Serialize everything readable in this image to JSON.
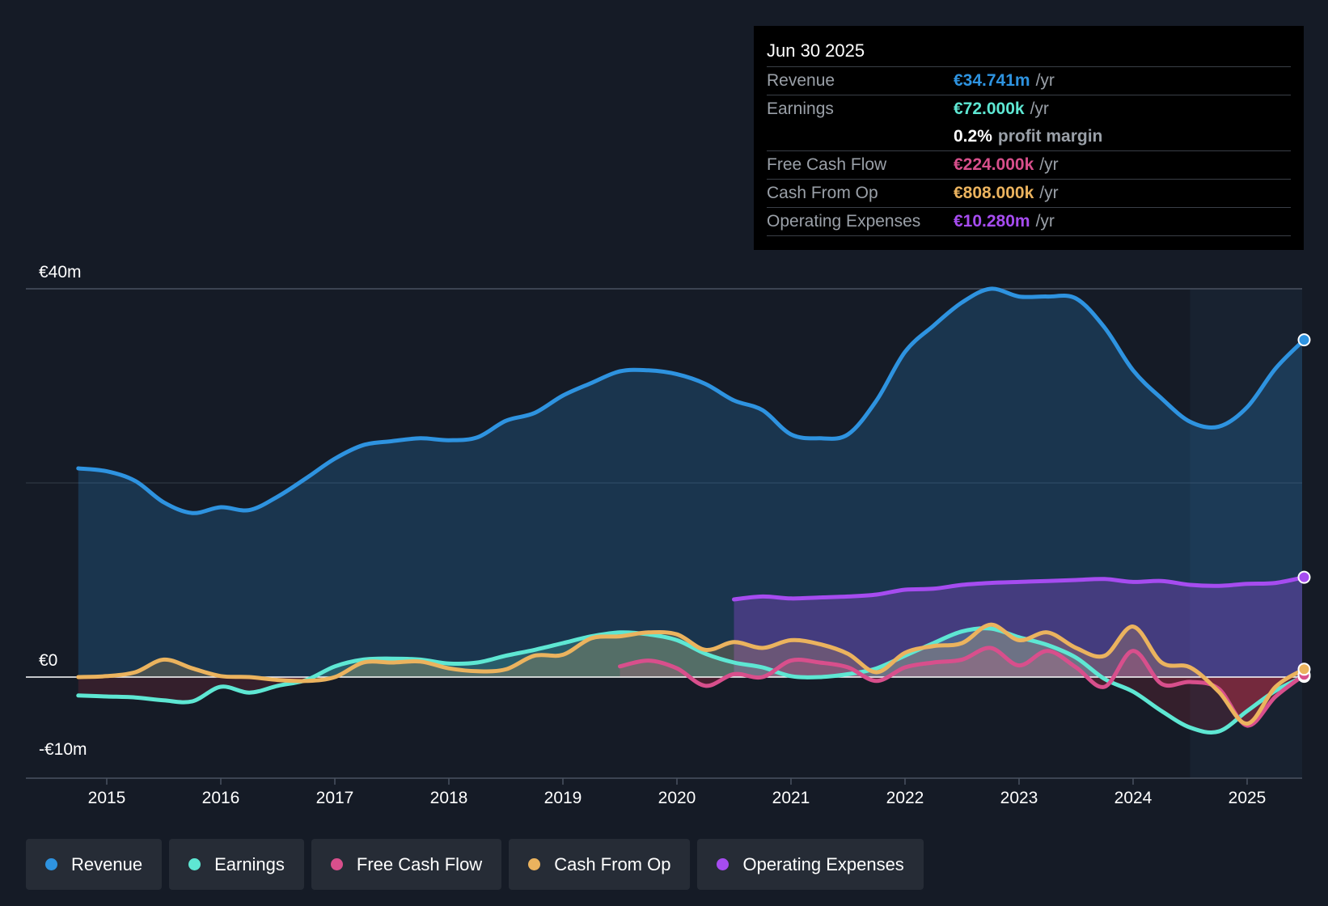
{
  "tooltip": {
    "date": "Jun 30 2025",
    "revenue": {
      "label": "Revenue",
      "value": "€34.741m",
      "unit": "/yr"
    },
    "earnings": {
      "label": "Earnings",
      "value": "€72.000k",
      "unit": "/yr"
    },
    "margin": {
      "value": "0.2%",
      "label": "profit margin"
    },
    "fcf": {
      "label": "Free Cash Flow",
      "value": "€224.000k",
      "unit": "/yr"
    },
    "cfo": {
      "label": "Cash From Op",
      "value": "€808.000k",
      "unit": "/yr"
    },
    "opex": {
      "label": "Operating Expenses",
      "value": "€10.280m",
      "unit": "/yr"
    }
  },
  "legend": {
    "revenue": "Revenue",
    "earnings": "Earnings",
    "fcf": "Free Cash Flow",
    "cfo": "Cash From Op",
    "opex": "Operating Expenses"
  },
  "colors": {
    "revenue": "#2e93e0",
    "earnings": "#5ee7d3",
    "fcf": "#d84f8c",
    "cfo": "#ebb35e",
    "opex": "#a64cf0",
    "background": "#151b26"
  },
  "chart_data": {
    "type": "line",
    "x_unit": "year",
    "ylim": [
      -10,
      40
    ],
    "y_ticks": [
      {
        "value": 40,
        "label": "€40m"
      },
      {
        "value": 0,
        "label": "€0"
      },
      {
        "value": -10,
        "label": "-€10m"
      }
    ],
    "x_ticks": [
      2015,
      2016,
      2017,
      2018,
      2019,
      2020,
      2021,
      2022,
      2023,
      2024,
      2025
    ],
    "forecast_start": 2024.5,
    "series": [
      {
        "key": "revenue",
        "name": "Revenue",
        "points": [
          [
            2014.75,
            21.5
          ],
          [
            2015.0,
            21.2
          ],
          [
            2015.25,
            20.2
          ],
          [
            2015.5,
            18.0
          ],
          [
            2015.75,
            16.9
          ],
          [
            2016.0,
            17.5
          ],
          [
            2016.25,
            17.2
          ],
          [
            2016.5,
            18.6
          ],
          [
            2016.75,
            20.5
          ],
          [
            2017.0,
            22.5
          ],
          [
            2017.25,
            23.9
          ],
          [
            2017.5,
            24.3
          ],
          [
            2017.75,
            24.6
          ],
          [
            2018.0,
            24.4
          ],
          [
            2018.25,
            24.7
          ],
          [
            2018.5,
            26.4
          ],
          [
            2018.75,
            27.2
          ],
          [
            2019.0,
            29.0
          ],
          [
            2019.25,
            30.3
          ],
          [
            2019.5,
            31.5
          ],
          [
            2019.75,
            31.6
          ],
          [
            2020.0,
            31.2
          ],
          [
            2020.25,
            30.2
          ],
          [
            2020.5,
            28.5
          ],
          [
            2020.75,
            27.5
          ],
          [
            2021.0,
            25.0
          ],
          [
            2021.25,
            24.6
          ],
          [
            2021.5,
            25.0
          ],
          [
            2021.75,
            28.5
          ],
          [
            2022.0,
            33.5
          ],
          [
            2022.25,
            36.2
          ],
          [
            2022.5,
            38.6
          ],
          [
            2022.75,
            40.0
          ],
          [
            2023.0,
            39.2
          ],
          [
            2023.25,
            39.2
          ],
          [
            2023.5,
            39.0
          ],
          [
            2023.75,
            36.0
          ],
          [
            2024.0,
            31.6
          ],
          [
            2024.25,
            28.7
          ],
          [
            2024.5,
            26.3
          ],
          [
            2024.75,
            25.8
          ],
          [
            2025.0,
            27.8
          ],
          [
            2025.25,
            31.8
          ],
          [
            2025.5,
            34.741
          ]
        ]
      },
      {
        "key": "opex",
        "name": "Operating Expenses",
        "points": [
          [
            2020.5,
            8.0
          ],
          [
            2020.75,
            8.3
          ],
          [
            2021.0,
            8.1
          ],
          [
            2021.25,
            8.2
          ],
          [
            2021.5,
            8.3
          ],
          [
            2021.75,
            8.5
          ],
          [
            2022.0,
            9.0
          ],
          [
            2022.25,
            9.1
          ],
          [
            2022.5,
            9.5
          ],
          [
            2022.75,
            9.7
          ],
          [
            2023.0,
            9.8
          ],
          [
            2023.25,
            9.9
          ],
          [
            2023.5,
            10.0
          ],
          [
            2023.75,
            10.1
          ],
          [
            2024.0,
            9.8
          ],
          [
            2024.25,
            9.9
          ],
          [
            2024.5,
            9.5
          ],
          [
            2024.75,
            9.4
          ],
          [
            2025.0,
            9.6
          ],
          [
            2025.25,
            9.7
          ],
          [
            2025.5,
            10.28
          ]
        ]
      },
      {
        "key": "earnings",
        "name": "Earnings",
        "points": [
          [
            2014.75,
            -1.9
          ],
          [
            2015.0,
            -2.0
          ],
          [
            2015.25,
            -2.1
          ],
          [
            2015.5,
            -2.4
          ],
          [
            2015.75,
            -2.5
          ],
          [
            2016.0,
            -1.0
          ],
          [
            2016.25,
            -1.6
          ],
          [
            2016.5,
            -0.9
          ],
          [
            2016.75,
            -0.3
          ],
          [
            2017.0,
            1.1
          ],
          [
            2017.25,
            1.8
          ],
          [
            2017.5,
            1.9
          ],
          [
            2017.75,
            1.8
          ],
          [
            2018.0,
            1.4
          ],
          [
            2018.25,
            1.5
          ],
          [
            2018.5,
            2.2
          ],
          [
            2018.75,
            2.8
          ],
          [
            2019.0,
            3.5
          ],
          [
            2019.25,
            4.2
          ],
          [
            2019.5,
            4.6
          ],
          [
            2019.75,
            4.4
          ],
          [
            2020.0,
            3.8
          ],
          [
            2020.25,
            2.4
          ],
          [
            2020.5,
            1.5
          ],
          [
            2020.75,
            1.0
          ],
          [
            2021.0,
            0.1
          ],
          [
            2021.25,
            0.0
          ],
          [
            2021.5,
            0.3
          ],
          [
            2021.75,
            0.9
          ],
          [
            2022.0,
            2.2
          ],
          [
            2022.25,
            3.5
          ],
          [
            2022.5,
            4.7
          ],
          [
            2022.75,
            5.0
          ],
          [
            2023.0,
            4.1
          ],
          [
            2023.25,
            3.3
          ],
          [
            2023.5,
            2.0
          ],
          [
            2023.75,
            -0.2
          ],
          [
            2024.0,
            -1.5
          ],
          [
            2024.25,
            -3.5
          ],
          [
            2024.5,
            -5.2
          ],
          [
            2024.75,
            -5.6
          ],
          [
            2025.0,
            -3.5
          ],
          [
            2025.25,
            -1.4
          ],
          [
            2025.5,
            0.072
          ]
        ]
      },
      {
        "key": "fcf",
        "name": "Free Cash Flow",
        "points": [
          [
            2019.5,
            1.1
          ],
          [
            2019.75,
            1.7
          ],
          [
            2020.0,
            0.9
          ],
          [
            2020.25,
            -0.9
          ],
          [
            2020.5,
            0.3
          ],
          [
            2020.75,
            0.0
          ],
          [
            2021.0,
            1.7
          ],
          [
            2021.25,
            1.5
          ],
          [
            2021.5,
            1.0
          ],
          [
            2021.75,
            -0.4
          ],
          [
            2022.0,
            1.0
          ],
          [
            2022.25,
            1.5
          ],
          [
            2022.5,
            1.8
          ],
          [
            2022.75,
            3.0
          ],
          [
            2023.0,
            1.2
          ],
          [
            2023.25,
            2.7
          ],
          [
            2023.5,
            1.0
          ],
          [
            2023.75,
            -1.0
          ],
          [
            2024.0,
            2.7
          ],
          [
            2024.25,
            -0.7
          ],
          [
            2024.5,
            -0.5
          ],
          [
            2024.75,
            -1.2
          ],
          [
            2025.0,
            -5.0
          ],
          [
            2025.25,
            -2.0
          ],
          [
            2025.5,
            0.224
          ]
        ]
      },
      {
        "key": "cfo",
        "name": "Cash From Op",
        "points": [
          [
            2014.75,
            0.0
          ],
          [
            2015.0,
            0.1
          ],
          [
            2015.25,
            0.5
          ],
          [
            2015.5,
            1.8
          ],
          [
            2015.75,
            0.9
          ],
          [
            2016.0,
            0.1
          ],
          [
            2016.25,
            0.0
          ],
          [
            2016.5,
            -0.3
          ],
          [
            2016.75,
            -0.4
          ],
          [
            2017.0,
            0.0
          ],
          [
            2017.25,
            1.5
          ],
          [
            2017.5,
            1.5
          ],
          [
            2017.75,
            1.6
          ],
          [
            2018.0,
            0.9
          ],
          [
            2018.25,
            0.6
          ],
          [
            2018.5,
            0.8
          ],
          [
            2018.75,
            2.2
          ],
          [
            2019.0,
            2.3
          ],
          [
            2019.25,
            4.0
          ],
          [
            2019.5,
            4.2
          ],
          [
            2019.75,
            4.6
          ],
          [
            2020.0,
            4.4
          ],
          [
            2020.25,
            2.8
          ],
          [
            2020.5,
            3.6
          ],
          [
            2020.75,
            3.0
          ],
          [
            2021.0,
            3.8
          ],
          [
            2021.25,
            3.4
          ],
          [
            2021.5,
            2.4
          ],
          [
            2021.75,
            0.5
          ],
          [
            2022.0,
            2.5
          ],
          [
            2022.25,
            3.2
          ],
          [
            2022.5,
            3.5
          ],
          [
            2022.75,
            5.4
          ],
          [
            2023.0,
            3.8
          ],
          [
            2023.25,
            4.6
          ],
          [
            2023.5,
            3.0
          ],
          [
            2023.75,
            2.2
          ],
          [
            2024.0,
            5.2
          ],
          [
            2024.25,
            1.5
          ],
          [
            2024.5,
            1.0
          ],
          [
            2024.75,
            -1.5
          ],
          [
            2025.0,
            -4.8
          ],
          [
            2025.25,
            -1.0
          ],
          [
            2025.5,
            0.808
          ]
        ]
      }
    ]
  }
}
